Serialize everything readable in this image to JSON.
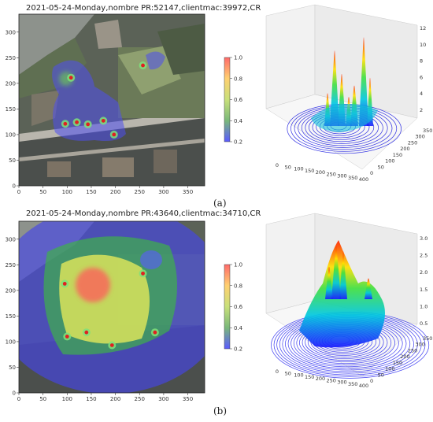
{
  "panels": [
    {
      "title": "2021-05-24-Monday,nombre PR:52147,clientmac:39972,CR",
      "caption": "(a)",
      "chart_data": {
        "type": "heatmap",
        "description_keys": "heatmap over aerial image with colorbar, plus 3D surface",
        "x_ticks": [
          0,
          50,
          100,
          150,
          200,
          250,
          300,
          350
        ],
        "y_ticks": [
          0,
          50,
          100,
          150,
          200,
          250,
          300
        ],
        "xlim": [
          0,
          385
        ],
        "ylim": [
          0,
          335
        ],
        "colorbar": {
          "ticks": [
            "0.2",
            "0.4",
            "0.6",
            "0.8",
            "1.0"
          ],
          "colors": [
            "#5b5bff",
            "#6cc06c",
            "#e8e86a",
            "#ff6e6e"
          ]
        },
        "hotspots": [
          {
            "x": 108,
            "y": 211
          },
          {
            "x": 96,
            "y": 121
          },
          {
            "x": 120,
            "y": 124
          },
          {
            "x": 143,
            "y": 120
          },
          {
            "x": 175,
            "y": 127
          },
          {
            "x": 257,
            "y": 235
          },
          {
            "x": 197,
            "y": 100
          }
        ],
        "surface3d": {
          "z_ticks": [
            "2",
            "4",
            "6",
            "8",
            "10",
            "12"
          ],
          "x_ticks": [
            "0",
            "50",
            "100",
            "150",
            "200",
            "250",
            "300",
            "350",
            "400"
          ],
          "y_ticks": [
            "0",
            "50",
            "100",
            "150",
            "200",
            "250",
            "300",
            "350"
          ]
        }
      }
    },
    {
      "title": "2021-05-24-Monday,nombre PR:43640,clientmac:34710,CR",
      "caption": "(b)",
      "chart_data": {
        "type": "heatmap",
        "x_ticks": [
          0,
          50,
          100,
          150,
          200,
          250,
          300,
          350
        ],
        "y_ticks": [
          0,
          50,
          100,
          150,
          200,
          250,
          300
        ],
        "xlim": [
          0,
          385
        ],
        "ylim": [
          0,
          335
        ],
        "colorbar": {
          "ticks": [
            "0.2",
            "0.4",
            "0.6",
            "0.8",
            "1.0"
          ],
          "colors": [
            "#5b5bff",
            "#6cc06c",
            "#e8e86a",
            "#ff6e6e"
          ]
        },
        "hotspots": [
          {
            "x": 95,
            "y": 213
          },
          {
            "x": 100,
            "y": 110
          },
          {
            "x": 140,
            "y": 118
          },
          {
            "x": 193,
            "y": 93
          },
          {
            "x": 257,
            "y": 233
          },
          {
            "x": 282,
            "y": 118
          }
        ],
        "surface3d": {
          "z_ticks": [
            "0.5",
            "1.0",
            "1.5",
            "2.0",
            "2.5",
            "3.0"
          ],
          "x_ticks": [
            "0",
            "50",
            "100",
            "150",
            "200",
            "250",
            "300",
            "350",
            "400"
          ],
          "y_ticks": [
            "0",
            "50",
            "100",
            "150",
            "200",
            "250",
            "300",
            "350"
          ]
        }
      }
    }
  ]
}
